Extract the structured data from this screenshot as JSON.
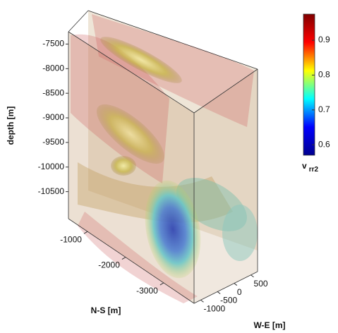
{
  "chart_data": {
    "type": "volume-3d",
    "zlabel": "depth [m]",
    "xlabel": "N-S [m]",
    "ylabel": "W-E [m]",
    "zlim": [
      -7250,
      -11050
    ],
    "zticks": [
      -7500,
      -8000,
      -8500,
      -9000,
      -9500,
      -10000,
      -10500
    ],
    "xlim": [
      -500,
      -3800
    ],
    "xticks": [
      -1000,
      -2000,
      -3000
    ],
    "ylim": [
      -1200,
      700
    ],
    "yticks": [
      -1000,
      -500,
      0,
      500
    ],
    "colorbar": {
      "label": "v",
      "label_subscript": "rr2",
      "clim": [
        0.57,
        0.975
      ],
      "ticks": [
        0.6,
        0.7,
        0.8,
        0.9
      ],
      "colormap": "jet"
    }
  }
}
